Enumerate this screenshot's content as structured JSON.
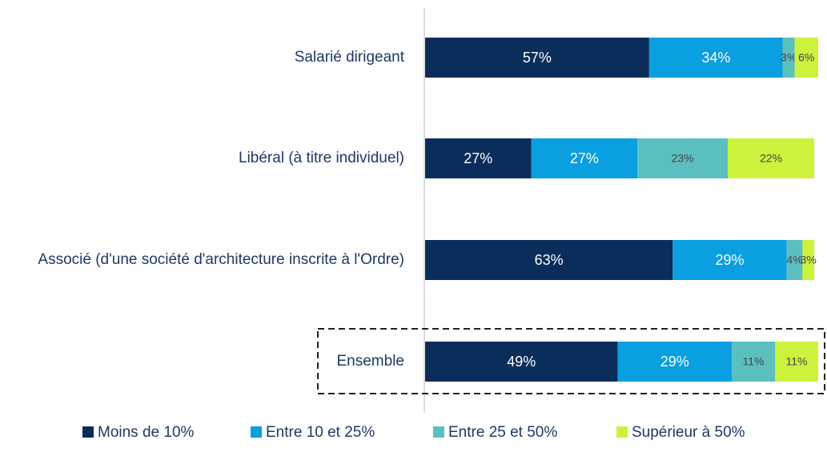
{
  "chart_data": {
    "type": "bar",
    "orientation": "horizontal",
    "stacked": true,
    "categories": [
      "Salarié dirigeant",
      "Libéral (à titre individuel)",
      "Associé (d'une société d'architecture inscrite à l'Ordre)",
      "Ensemble"
    ],
    "series": [
      {
        "name": "Moins de 10%",
        "color": "#0b2d5c",
        "values": [
          57,
          27,
          63,
          49
        ],
        "value_labels": [
          "57%",
          "27%",
          "63%",
          "49%"
        ]
      },
      {
        "name": "Entre 10 et 25%",
        "color": "#0a9fe0",
        "values": [
          34,
          27,
          29,
          29
        ],
        "value_labels": [
          "34%",
          "27%",
          "29%",
          "29%"
        ]
      },
      {
        "name": "Entre 25 et 50%",
        "color": "#5cbfbf",
        "values": [
          3,
          23,
          4,
          11
        ],
        "value_labels": [
          "3%",
          "23%",
          "4%",
          "11%"
        ]
      },
      {
        "name": "Supérieur à 50%",
        "color": "#ccf23c",
        "values": [
          6,
          22,
          3,
          11
        ],
        "value_labels": [
          "6%",
          "22%",
          "3%",
          "11%"
        ]
      }
    ],
    "legend": "bottom"
  }
}
